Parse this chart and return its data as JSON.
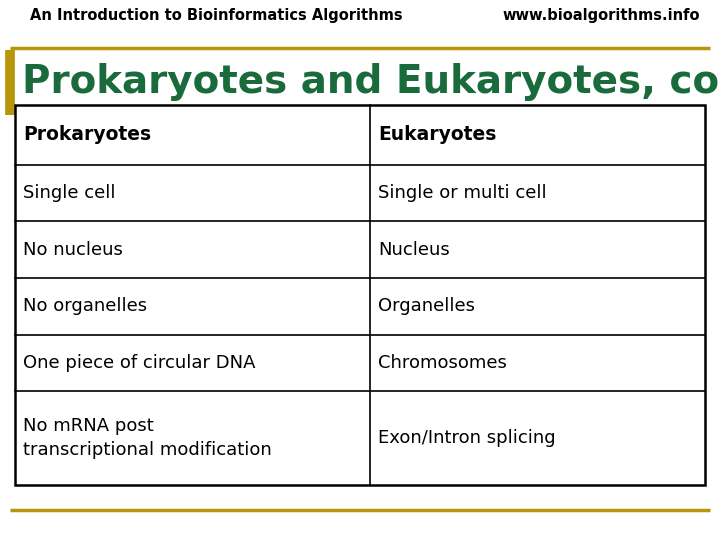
{
  "header_left": "An Introduction to Bioinformatics Algorithms",
  "header_right": "www.bioalgorithms.info",
  "title": "Prokaryotes and Eukaryotes, continued",
  "title_color": "#1a6b3c",
  "background_color": "#ffffff",
  "header_line_color": "#b8960c",
  "title_bar_color": "#b8960c",
  "table_headers": [
    "Prokaryotes",
    "Eukaryotes"
  ],
  "table_rows": [
    [
      "Single cell",
      "Single or multi cell"
    ],
    [
      "No nucleus",
      "Nucleus"
    ],
    [
      "No organelles",
      "Organelles"
    ],
    [
      "One piece of circular DNA",
      "Chromosomes"
    ],
    [
      "No mRNA post\ntranscriptional modification",
      "Exon/Intron splicing"
    ]
  ],
  "header_fontsize": 10.5,
  "title_fontsize": 28,
  "table_header_fontsize": 13.5,
  "table_body_fontsize": 13
}
